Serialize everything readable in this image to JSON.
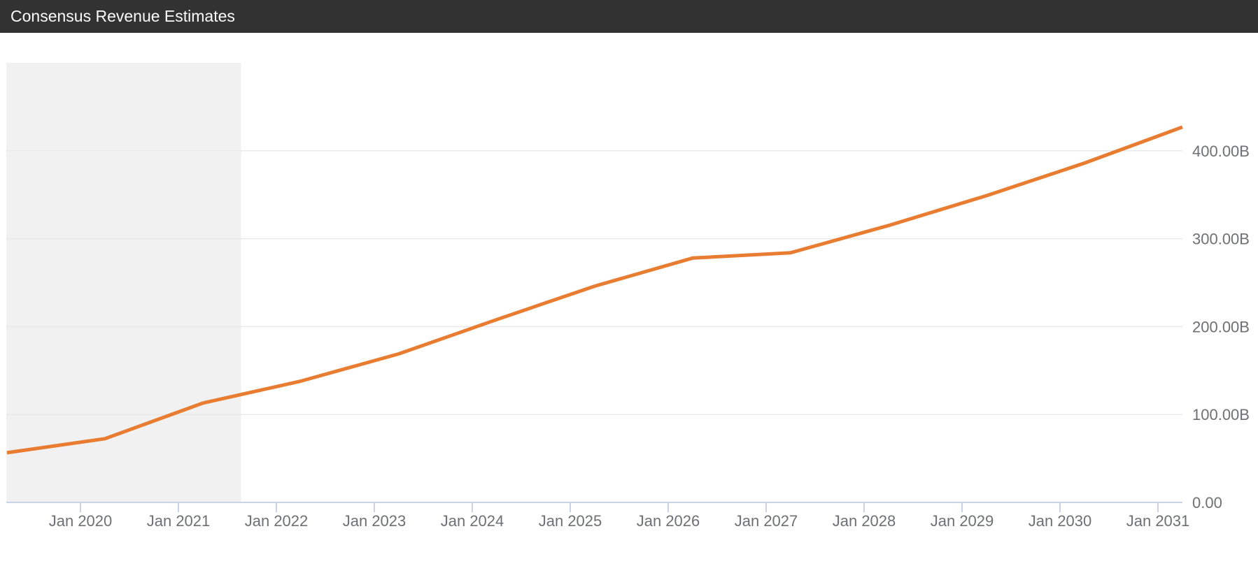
{
  "header": {
    "title": "Consensus Revenue Estimates"
  },
  "colors": {
    "header_bg": "#323232",
    "header_text": "#fafafa",
    "background": "#ffffff",
    "line": "#e87c30",
    "axis": "#c9d3e7",
    "grid": "#e9e9e9",
    "labels": "#6e7074",
    "historical_region": "#f1f1f1"
  },
  "chart_data": {
    "type": "line",
    "title": "Consensus Revenue Estimates",
    "unit": "B",
    "y_axis_position": "right",
    "grid": "horizontal-only",
    "legend": "none",
    "ylim": [
      0,
      500
    ],
    "xlim_years": [
      2019.24,
      2031.25
    ],
    "series": [
      {
        "name": "Consensus Revenue Estimate",
        "x_years": [
          2019.25,
          2020.25,
          2021.25,
          2022.25,
          2023.25,
          2024.25,
          2025.25,
          2026.25,
          2027.25,
          2028.25,
          2029.25,
          2030.25,
          2031.25
        ],
        "values_b": [
          56.5,
          72.5,
          113,
          138,
          169,
          208,
          246,
          278,
          284,
          315,
          349,
          386,
          427
        ]
      }
    ],
    "x_ticks": {
      "years": [
        2020,
        2021,
        2022,
        2023,
        2024,
        2025,
        2026,
        2027,
        2028,
        2029,
        2030,
        2031
      ],
      "labels": [
        "Jan 2020",
        "Jan 2021",
        "Jan 2022",
        "Jan 2023",
        "Jan 2024",
        "Jan 2025",
        "Jan 2026",
        "Jan 2027",
        "Jan 2028",
        "Jan 2029",
        "Jan 2030",
        "Jan 2031"
      ]
    },
    "y_ticks": {
      "values": [
        0,
        100,
        200,
        300,
        400
      ],
      "labels": [
        "0.00",
        "100.00B",
        "200.00B",
        "300.00B",
        "400.00B"
      ]
    },
    "historical_shading": {
      "from_year": 2019.24,
      "to_year": 2021.64
    }
  }
}
